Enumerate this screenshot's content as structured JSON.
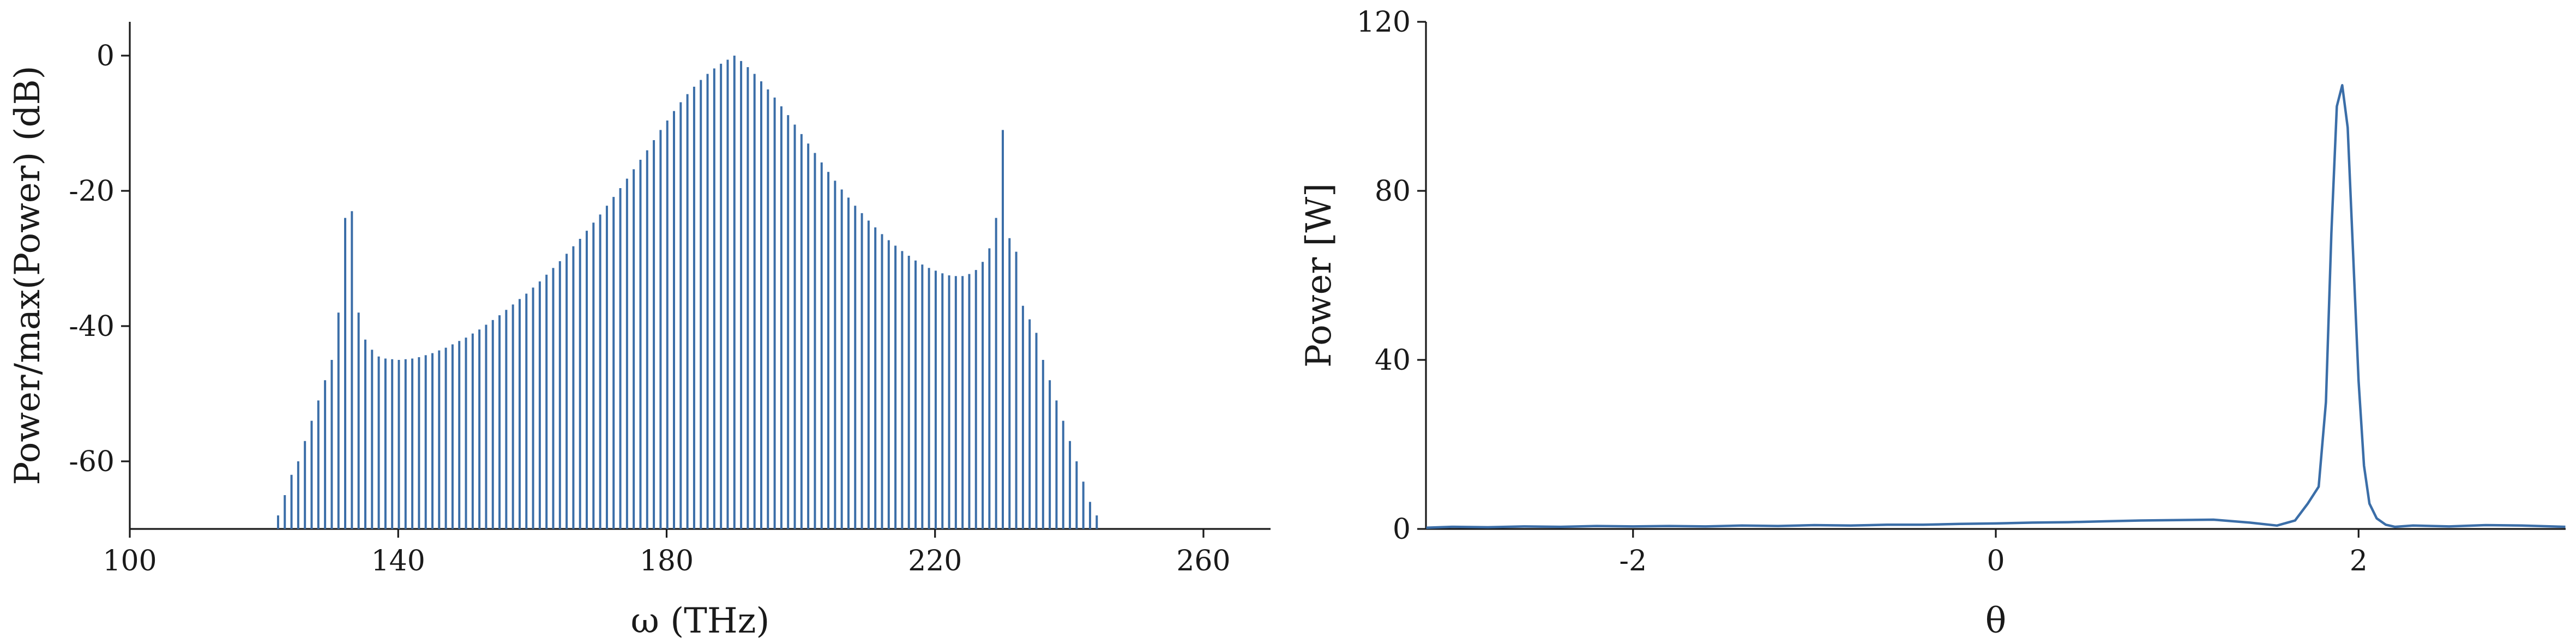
{
  "chart_data": [
    {
      "type": "bar",
      "xlabel": "ω (THz)",
      "ylabel": "Power/max(Power) (dB)",
      "xlim": [
        100,
        270
      ],
      "ylim": [
        -70,
        5
      ],
      "xticks": [
        100,
        140,
        180,
        220,
        260
      ],
      "xtick_labels": [
        "100",
        "140",
        "180",
        "220",
        "260"
      ],
      "yticks": [
        0,
        -20,
        -40,
        -60
      ],
      "ytick_labels": [
        "0",
        "-20",
        "-40",
        "-60"
      ],
      "grid": false,
      "series": [
        {
          "color": "#3b6ea8",
          "x": [
            121.1,
            122.1,
            123.1,
            124.1,
            125.1,
            126.1,
            127.1,
            128.1,
            129.1,
            130.1,
            131.1,
            132.1,
            133.1,
            134.1,
            135.1,
            136.1,
            137.1,
            138.1,
            139.1,
            140.1,
            141.1,
            142.1,
            143.1,
            144.1,
            145.1,
            146.1,
            147.1,
            148.1,
            149.1,
            150.1,
            151.1,
            152.1,
            153.1,
            154.1,
            155.1,
            156.1,
            157.1,
            158.1,
            159.1,
            160.1,
            161.1,
            162.1,
            163.1,
            164.1,
            165.1,
            166.1,
            167.1,
            168.1,
            169.1,
            170.1,
            171.1,
            172.1,
            173.1,
            174.1,
            175.1,
            176.1,
            177.1,
            178.1,
            179.1,
            180.1,
            181.1,
            182.1,
            183.1,
            184.1,
            185.1,
            186.1,
            187.1,
            188.1,
            189.1,
            190.1,
            191.1,
            192.1,
            193.1,
            194.1,
            195.1,
            196.1,
            197.1,
            198.1,
            199.1,
            200.1,
            201.1,
            202.1,
            203.1,
            204.1,
            205.1,
            206.1,
            207.1,
            208.1,
            209.1,
            210.1,
            211.1,
            212.1,
            213.1,
            214.1,
            215.1,
            216.1,
            217.1,
            218.1,
            219.1,
            220.1,
            221.1,
            222.1,
            223.1,
            224.1,
            225.1,
            226.1,
            227.1,
            228.1,
            229.1,
            230.1,
            231.1,
            232.1,
            233.1,
            234.1,
            235.1,
            236.1,
            237.1,
            238.1,
            239.1,
            240.1,
            241.1,
            242.1,
            243.1,
            244.1,
            245.1
          ],
          "values": [
            -70.0,
            -68.0,
            -65.0,
            -62.0,
            -60.0,
            -57.0,
            -54.0,
            -51.0,
            -48.0,
            -45.0,
            -38.0,
            -24.0,
            -23.0,
            -38.0,
            -42.0,
            -43.5,
            -44.5,
            -44.8,
            -44.9,
            -45.0,
            -44.9,
            -44.8,
            -44.6,
            -44.3,
            -44.0,
            -43.6,
            -43.2,
            -42.7,
            -42.2,
            -41.7,
            -41.1,
            -40.5,
            -39.8,
            -39.1,
            -38.4,
            -37.6,
            -36.8,
            -36.0,
            -35.2,
            -34.3,
            -33.4,
            -32.4,
            -31.4,
            -30.4,
            -29.3,
            -28.2,
            -27.1,
            -25.9,
            -24.7,
            -23.5,
            -22.2,
            -20.9,
            -19.6,
            -18.2,
            -16.8,
            -15.4,
            -14.0,
            -12.5,
            -11.0,
            -9.6,
            -8.2,
            -6.9,
            -5.7,
            -4.6,
            -3.6,
            -2.7,
            -1.9,
            -1.2,
            -0.6,
            0.0,
            -0.8,
            -1.7,
            -2.7,
            -3.8,
            -5.0,
            -6.2,
            -7.5,
            -8.8,
            -10.2,
            -11.6,
            -13.0,
            -14.4,
            -15.8,
            -17.2,
            -18.5,
            -19.8,
            -21.0,
            -22.2,
            -23.3,
            -24.4,
            -25.4,
            -26.4,
            -27.3,
            -28.1,
            -28.9,
            -29.6,
            -30.3,
            -30.9,
            -31.4,
            -31.8,
            -32.2,
            -32.5,
            -32.6,
            -32.6,
            -32.3,
            -31.7,
            -30.5,
            -28.5,
            -24.0,
            -11.0,
            -27.0,
            -29.0,
            -37.0,
            -39.0,
            -41.0,
            -45.0,
            -48.0,
            -51.0,
            -54.0,
            -57.0,
            -60.0,
            -63.0,
            -66.0,
            -68.0,
            -70.0
          ]
        }
      ]
    },
    {
      "type": "line",
      "xlabel": "θ",
      "ylabel": "Power [W]",
      "xlim": [
        -3.1416,
        3.1416
      ],
      "ylim": [
        0,
        120
      ],
      "xticks": [
        -2,
        0,
        2
      ],
      "xtick_labels": [
        "-2",
        "0",
        "2"
      ],
      "yticks": [
        0,
        40,
        80,
        120
      ],
      "ytick_labels": [
        "0",
        "40",
        "80",
        "120"
      ],
      "grid": false,
      "series": [
        {
          "color": "#3b6ea8",
          "x": [
            -3.14,
            -3.0,
            -2.8,
            -2.6,
            -2.4,
            -2.2,
            -2.0,
            -1.8,
            -1.6,
            -1.4,
            -1.2,
            -1.0,
            -0.8,
            -0.6,
            -0.4,
            -0.2,
            0.0,
            0.2,
            0.4,
            0.6,
            0.8,
            1.0,
            1.2,
            1.4,
            1.55,
            1.65,
            1.72,
            1.78,
            1.82,
            1.85,
            1.88,
            1.91,
            1.94,
            1.97,
            2.0,
            2.03,
            2.06,
            2.1,
            2.15,
            2.2,
            2.3,
            2.5,
            2.7,
            2.9,
            3.14
          ],
          "values": [
            0.3,
            0.5,
            0.4,
            0.6,
            0.5,
            0.7,
            0.6,
            0.7,
            0.6,
            0.8,
            0.7,
            0.9,
            0.8,
            1.0,
            1.0,
            1.2,
            1.3,
            1.5,
            1.6,
            1.8,
            2.0,
            2.1,
            2.2,
            1.5,
            0.8,
            2.0,
            6.0,
            10.0,
            30.0,
            70.0,
            100.0,
            105.0,
            95.0,
            65.0,
            35.0,
            15.0,
            6.0,
            2.5,
            1.0,
            0.5,
            0.8,
            0.6,
            0.9,
            0.8,
            0.5
          ]
        }
      ]
    }
  ]
}
